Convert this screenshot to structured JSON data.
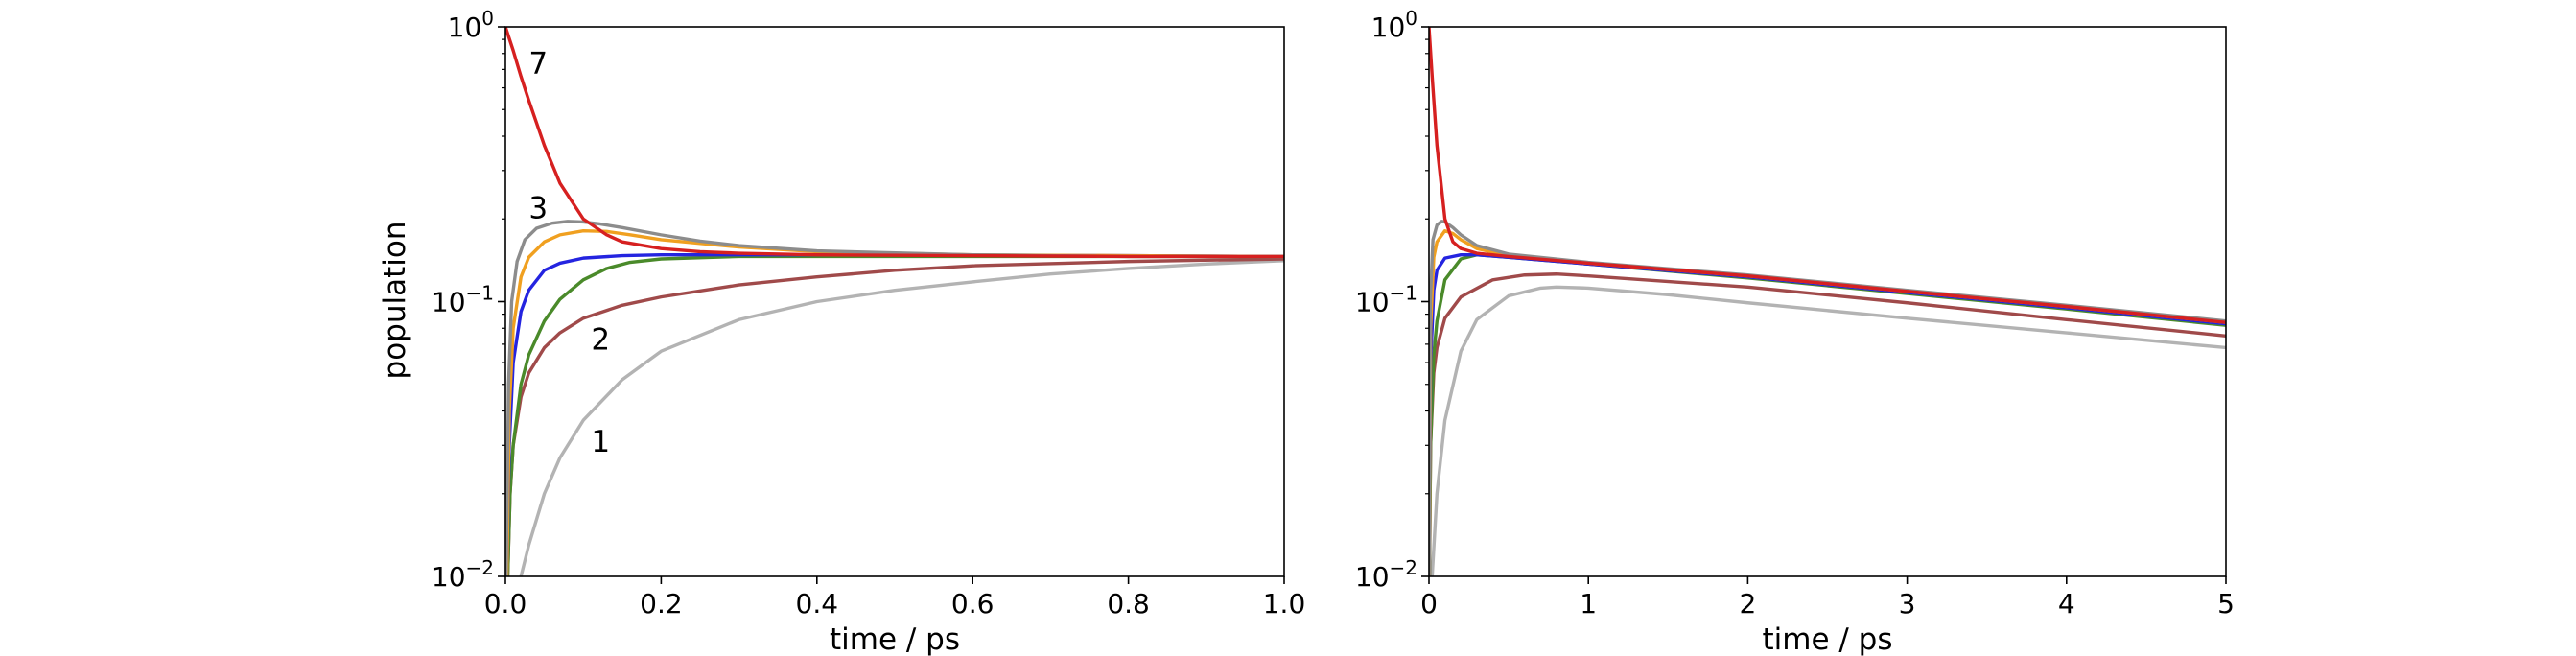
{
  "figure": {
    "ylabel": "population"
  },
  "chart_data": [
    {
      "type": "line",
      "xlabel": "time / ps",
      "ylabel": "population",
      "xlim": [
        0,
        1
      ],
      "ylim": [
        0.01,
        1
      ],
      "yscale": "log",
      "grid": false,
      "xticks": [
        "0.0",
        "0.2",
        "0.4",
        "0.6",
        "0.8",
        "1.0"
      ],
      "xtick_values": [
        0,
        0.2,
        0.4,
        0.6,
        0.8,
        1.0
      ],
      "yticks": [
        {
          "value": 0.01,
          "base": "10",
          "exp": "−2"
        },
        {
          "value": 0.1,
          "base": "10",
          "exp": "−1"
        },
        {
          "value": 1,
          "base": "10",
          "exp": "0"
        }
      ],
      "annotations": [
        {
          "text": "7",
          "x": 0.03,
          "y": 0.74
        },
        {
          "text": "3",
          "x": 0.03,
          "y": 0.22
        },
        {
          "text": "2",
          "x": 0.11,
          "y": 0.073
        },
        {
          "text": "1",
          "x": 0.11,
          "y": 0.031
        }
      ],
      "series": [
        {
          "color": "#b3b3b3",
          "x": [
            0.02,
            0.03,
            0.05,
            0.07,
            0.1,
            0.15,
            0.2,
            0.3,
            0.4,
            0.5,
            0.6,
            0.7,
            0.8,
            0.9,
            1.0
          ],
          "y": [
            0.01,
            0.013,
            0.02,
            0.027,
            0.037,
            0.052,
            0.066,
            0.086,
            0.1,
            0.11,
            0.118,
            0.126,
            0.132,
            0.137,
            0.141
          ]
        },
        {
          "color": "#a04a4a",
          "x": [
            0.003,
            0.006,
            0.01,
            0.02,
            0.03,
            0.05,
            0.07,
            0.1,
            0.15,
            0.2,
            0.3,
            0.4,
            0.5,
            0.6,
            0.8,
            1.0
          ],
          "y": [
            0.01,
            0.02,
            0.03,
            0.045,
            0.055,
            0.068,
            0.077,
            0.087,
            0.097,
            0.104,
            0.115,
            0.123,
            0.13,
            0.135,
            0.14,
            0.143
          ]
        },
        {
          "color": "#4a8a2a",
          "x": [
            0.003,
            0.006,
            0.01,
            0.02,
            0.03,
            0.05,
            0.07,
            0.1,
            0.13,
            0.16,
            0.2,
            0.3,
            0.5,
            0.8,
            1.0
          ],
          "y": [
            0.01,
            0.02,
            0.03,
            0.05,
            0.064,
            0.085,
            0.102,
            0.12,
            0.132,
            0.139,
            0.143,
            0.146,
            0.146,
            0.146,
            0.146
          ]
        },
        {
          "color": "#2424e0",
          "x": [
            0.002,
            0.005,
            0.01,
            0.02,
            0.03,
            0.05,
            0.07,
            0.1,
            0.15,
            0.2,
            0.3,
            0.5,
            0.8,
            1.0
          ],
          "y": [
            0.01,
            0.03,
            0.06,
            0.092,
            0.11,
            0.13,
            0.138,
            0.144,
            0.147,
            0.148,
            0.148,
            0.148,
            0.147,
            0.146
          ]
        },
        {
          "color": "#f0a020",
          "x": [
            0.002,
            0.005,
            0.01,
            0.02,
            0.03,
            0.05,
            0.07,
            0.1,
            0.13,
            0.16,
            0.2,
            0.3,
            0.4,
            0.6,
            0.8,
            1.0
          ],
          "y": [
            0.01,
            0.04,
            0.08,
            0.123,
            0.145,
            0.165,
            0.175,
            0.181,
            0.18,
            0.175,
            0.168,
            0.158,
            0.152,
            0.148,
            0.147,
            0.146
          ]
        },
        {
          "color": "#8c8c8c",
          "x": [
            0.001,
            0.004,
            0.008,
            0.015,
            0.025,
            0.04,
            0.06,
            0.08,
            0.1,
            0.12,
            0.15,
            0.2,
            0.25,
            0.3,
            0.4,
            0.6,
            0.8,
            1.0
          ],
          "y": [
            0.01,
            0.05,
            0.1,
            0.14,
            0.168,
            0.185,
            0.193,
            0.196,
            0.195,
            0.192,
            0.186,
            0.175,
            0.166,
            0.16,
            0.153,
            0.148,
            0.146,
            0.146
          ]
        },
        {
          "color": "#d62020",
          "x": [
            0,
            0.01,
            0.02,
            0.03,
            0.05,
            0.07,
            0.1,
            0.13,
            0.15,
            0.2,
            0.25,
            0.3,
            0.4,
            0.6,
            0.8,
            1.0
          ],
          "y": [
            1.0,
            0.82,
            0.66,
            0.54,
            0.37,
            0.27,
            0.2,
            0.175,
            0.165,
            0.156,
            0.152,
            0.15,
            0.148,
            0.147,
            0.146,
            0.146
          ]
        }
      ]
    },
    {
      "type": "line",
      "xlabel": "time / ps",
      "xlim": [
        0,
        5
      ],
      "ylim": [
        0.01,
        1
      ],
      "yscale": "log",
      "grid": false,
      "xticks": [
        "0",
        "1",
        "2",
        "3",
        "4",
        "5"
      ],
      "xtick_values": [
        0,
        1,
        2,
        3,
        4,
        5
      ],
      "yticks": [
        {
          "value": 0.01,
          "base": "10",
          "exp": "−2"
        },
        {
          "value": 0.1,
          "base": "10",
          "exp": "−1"
        },
        {
          "value": 1,
          "base": "10",
          "exp": "0"
        }
      ],
      "series": [
        {
          "color": "#b3b3b3",
          "x": [
            0.02,
            0.05,
            0.1,
            0.2,
            0.3,
            0.5,
            0.7,
            0.8,
            1.0,
            1.5,
            2,
            3,
            4,
            5
          ],
          "y": [
            0.01,
            0.02,
            0.037,
            0.066,
            0.086,
            0.105,
            0.112,
            0.113,
            0.112,
            0.106,
            0.099,
            0.087,
            0.077,
            0.068
          ]
        },
        {
          "color": "#a04a4a",
          "x": [
            0.003,
            0.01,
            0.03,
            0.05,
            0.1,
            0.2,
            0.4,
            0.6,
            0.8,
            1,
            2,
            3,
            4,
            5
          ],
          "y": [
            0.01,
            0.03,
            0.055,
            0.068,
            0.087,
            0.104,
            0.12,
            0.125,
            0.126,
            0.124,
            0.113,
            0.099,
            0.086,
            0.075
          ]
        },
        {
          "color": "#4a8a2a",
          "x": [
            0.003,
            0.01,
            0.03,
            0.05,
            0.1,
            0.2,
            0.3,
            0.5,
            1,
            2,
            3,
            4,
            5
          ],
          "y": [
            0.01,
            0.03,
            0.064,
            0.085,
            0.12,
            0.143,
            0.148,
            0.145,
            0.137,
            0.122,
            0.107,
            0.094,
            0.082
          ]
        },
        {
          "color": "#2424e0",
          "x": [
            0.002,
            0.01,
            0.03,
            0.05,
            0.1,
            0.2,
            0.3,
            0.5,
            1,
            2,
            3,
            4,
            5
          ],
          "y": [
            0.01,
            0.06,
            0.11,
            0.13,
            0.144,
            0.148,
            0.148,
            0.145,
            0.137,
            0.123,
            0.108,
            0.095,
            0.083
          ]
        },
        {
          "color": "#f0a020",
          "x": [
            0.002,
            0.01,
            0.03,
            0.05,
            0.1,
            0.15,
            0.2,
            0.3,
            0.5,
            1,
            2,
            3,
            4,
            5
          ],
          "y": [
            0.01,
            0.08,
            0.145,
            0.165,
            0.181,
            0.177,
            0.168,
            0.156,
            0.147,
            0.138,
            0.124,
            0.109,
            0.096,
            0.084
          ]
        },
        {
          "color": "#8c8c8c",
          "x": [
            0.001,
            0.008,
            0.025,
            0.05,
            0.08,
            0.1,
            0.15,
            0.2,
            0.3,
            0.5,
            1,
            2,
            3,
            4,
            5
          ],
          "y": [
            0.01,
            0.1,
            0.168,
            0.19,
            0.196,
            0.195,
            0.186,
            0.175,
            0.16,
            0.149,
            0.139,
            0.125,
            0.11,
            0.097,
            0.085
          ]
        },
        {
          "color": "#d62020",
          "x": [
            0,
            0.02,
            0.05,
            0.1,
            0.15,
            0.2,
            0.3,
            0.5,
            1,
            2,
            3,
            4,
            5
          ],
          "y": [
            1.0,
            0.66,
            0.37,
            0.2,
            0.165,
            0.156,
            0.15,
            0.146,
            0.138,
            0.124,
            0.109,
            0.096,
            0.084
          ]
        }
      ]
    }
  ]
}
